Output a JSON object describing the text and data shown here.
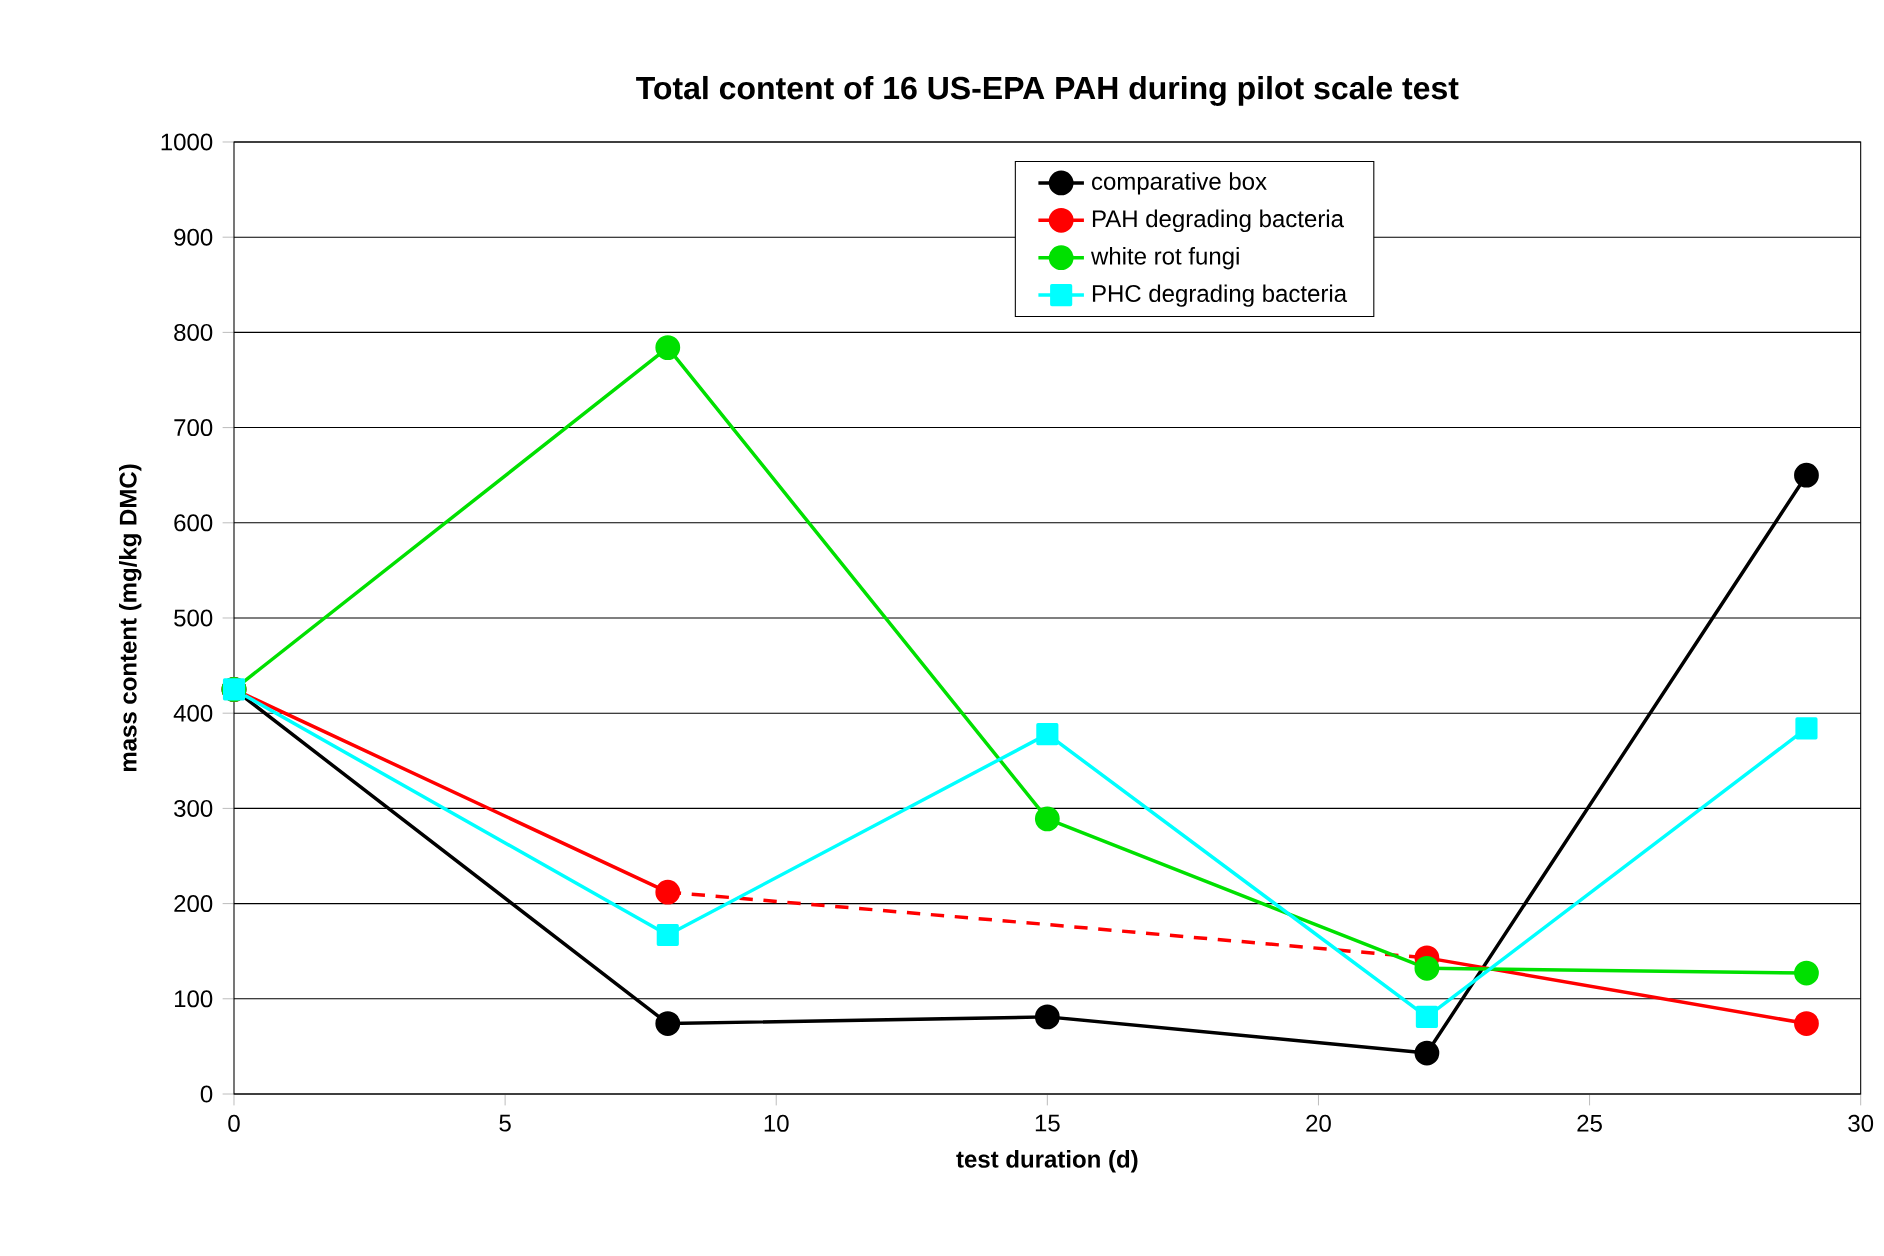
{
  "chart_data": {
    "type": "line",
    "title": "Total content of 16 US-EPA PAH during pilot scale test",
    "xlabel": "test duration (d)",
    "ylabel": "mass content (mg/kg DMC)",
    "xlim": [
      0,
      30
    ],
    "xticks": [
      0,
      5,
      10,
      15,
      20,
      25,
      30
    ],
    "ylim": [
      0,
      1000
    ],
    "yticks": [
      0,
      100,
      200,
      300,
      400,
      500,
      600,
      700,
      800,
      900,
      1000
    ],
    "grid": "y",
    "legend": "top right",
    "series": [
      {
        "name": "comparative box",
        "color": "#000000",
        "marker": "circle",
        "x": [
          0,
          8,
          15,
          22,
          29
        ],
        "values": [
          425,
          74,
          81,
          43,
          650
        ]
      },
      {
        "color": "#ff0000",
        "line_style": "dashed",
        "x": [
          8,
          15,
          22
        ],
        "values": [
          212,
          178,
          143
        ]
      },
      {
        "name": "PAH degrading bacteria",
        "color": "#ff0000",
        "marker": "circle",
        "x": [
          0,
          8,
          15,
          22,
          29
        ],
        "values": [
          425,
          212,
          null,
          143,
          74
        ]
      },
      {
        "name": "white rot fungi",
        "color": "#00e000",
        "marker": "circle",
        "x": [
          0,
          8,
          15,
          22,
          29
        ],
        "values": [
          425,
          784,
          289,
          132,
          127
        ]
      },
      {
        "name": "PHC degrading bacteria",
        "color": "#00ffff",
        "marker": "square",
        "x": [
          0,
          8,
          15,
          22,
          29
        ],
        "values": [
          425,
          167,
          378,
          81,
          384
        ]
      }
    ]
  }
}
